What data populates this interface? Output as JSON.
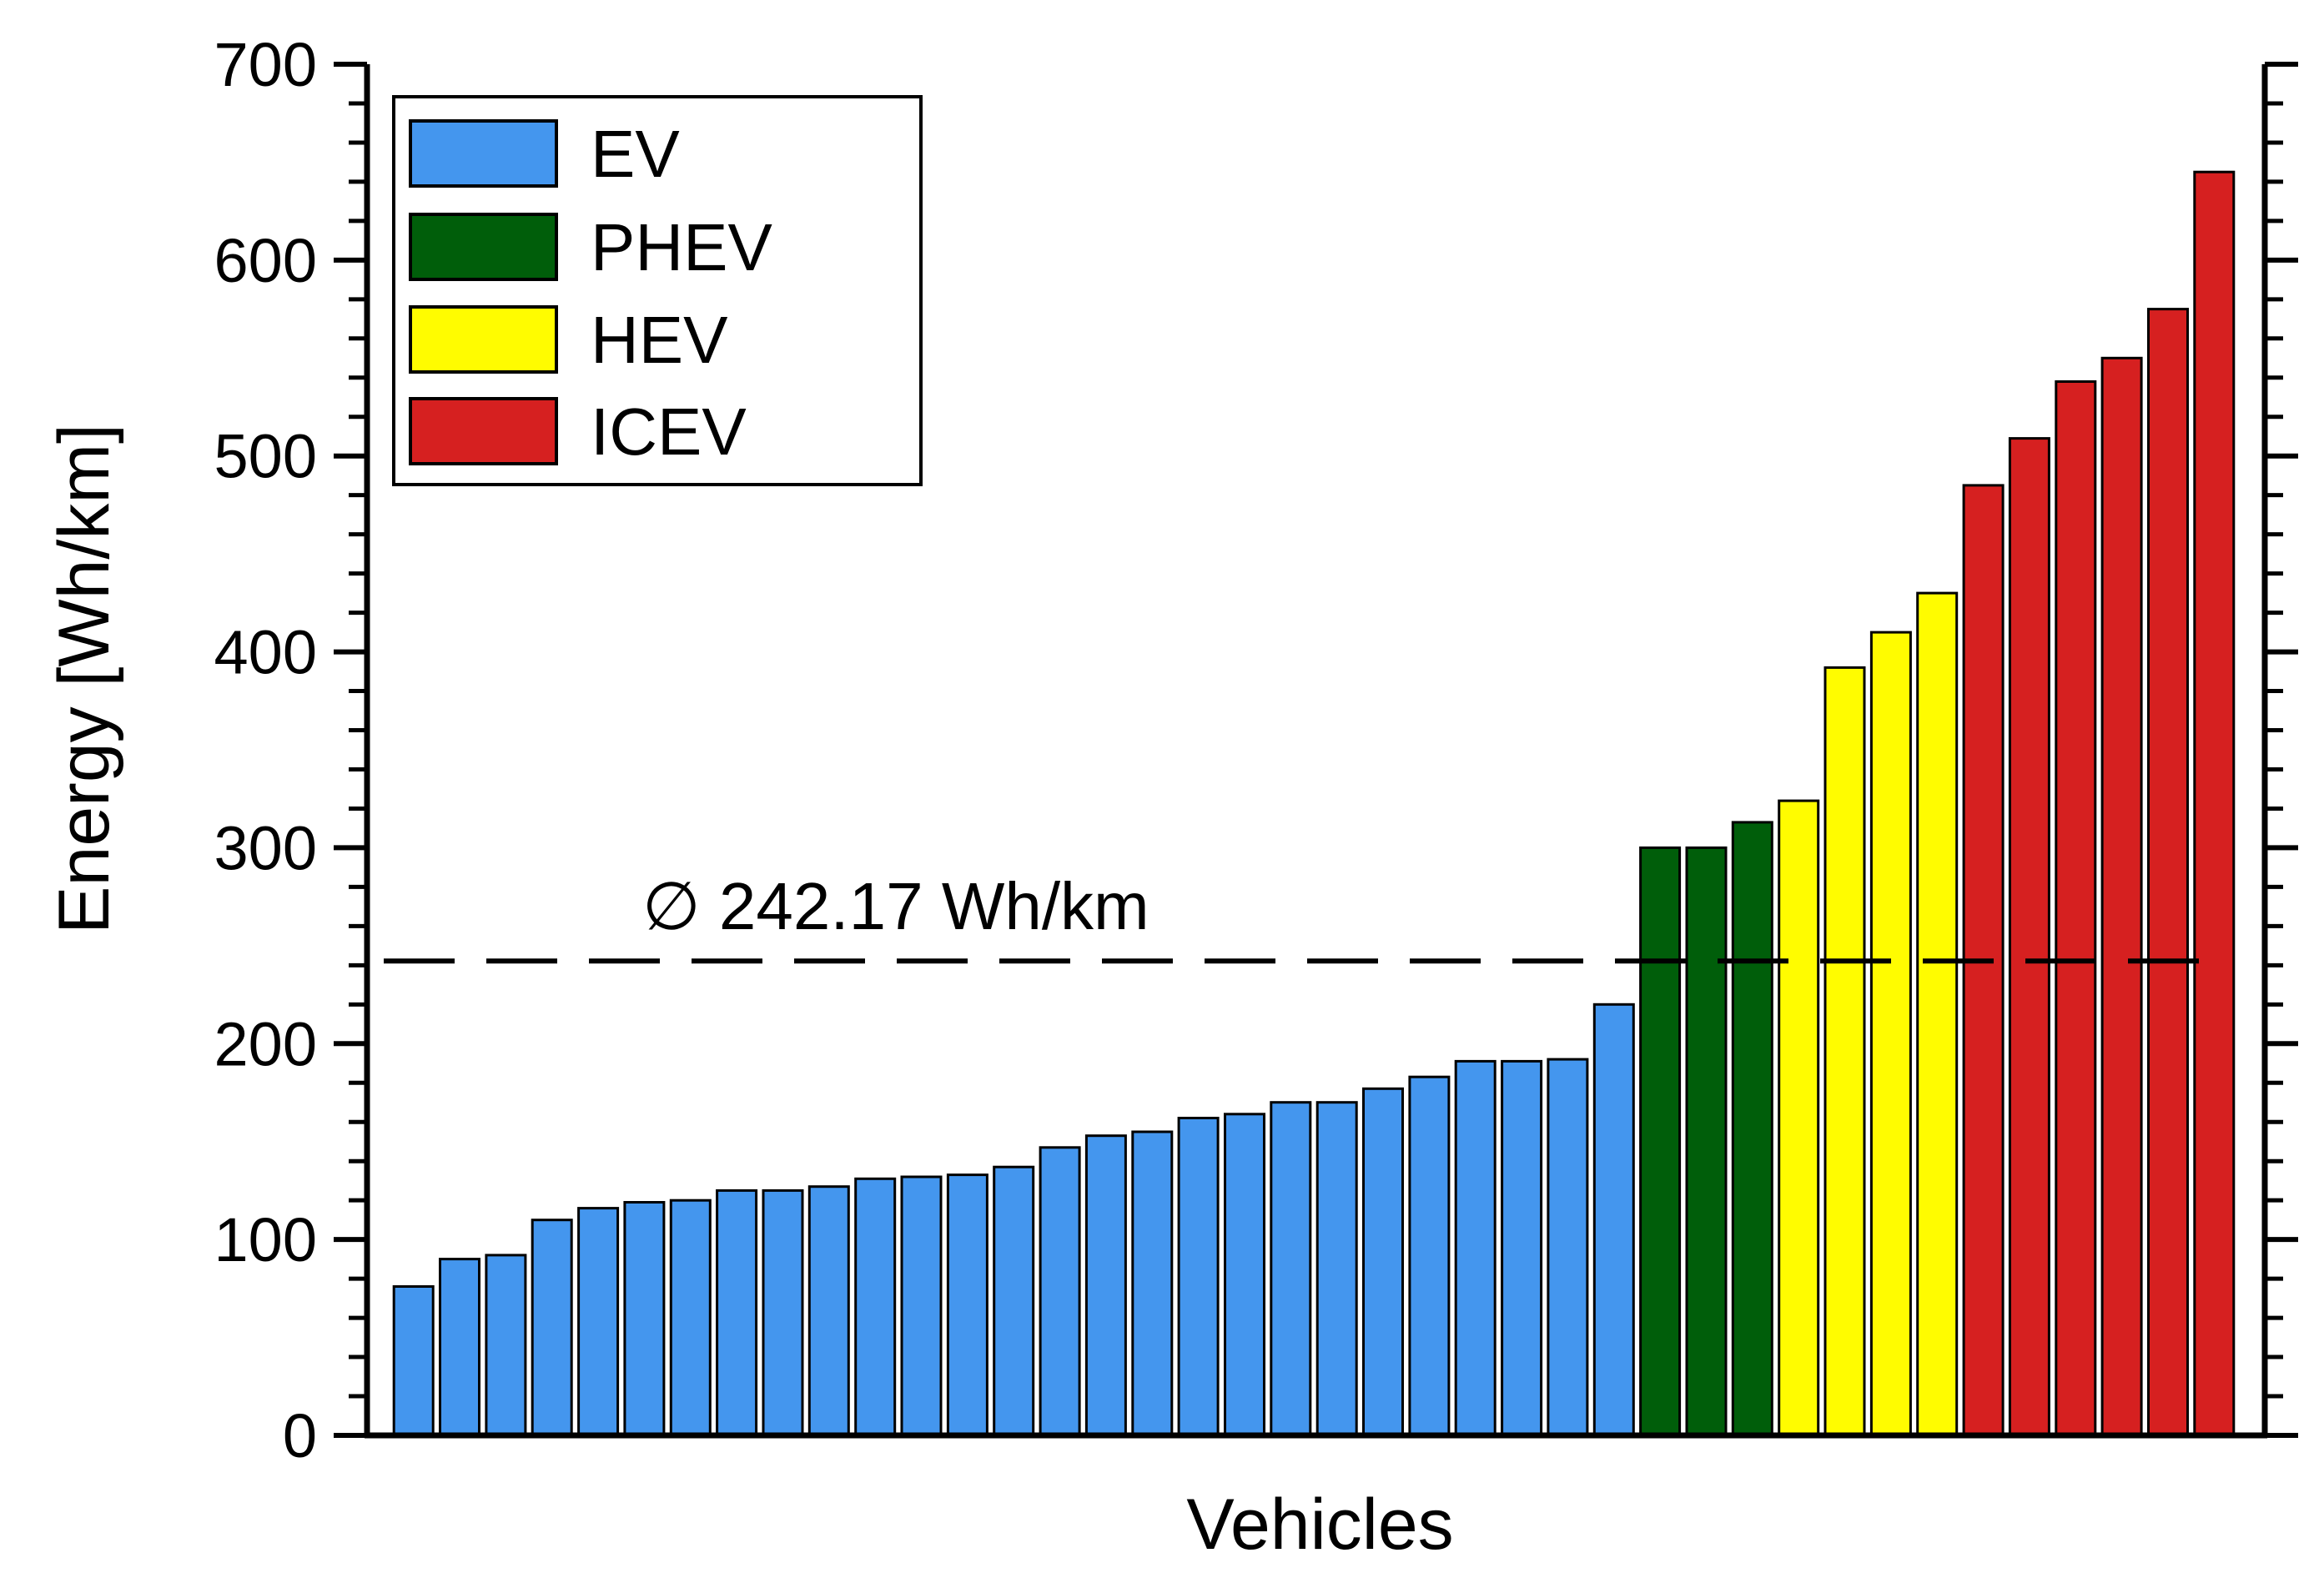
{
  "chart_data": {
    "type": "bar",
    "title": "",
    "xlabel": "Vehicles",
    "ylabel": "Energy [Wh/km]",
    "ylim": [
      0,
      700
    ],
    "yticks": [
      0,
      100,
      200,
      300,
      400,
      500,
      600,
      700
    ],
    "ytick_labels": [
      "0",
      "100",
      "200",
      "300",
      "400",
      "500",
      "600",
      "700"
    ],
    "legend_position": "top-left",
    "grid": false,
    "series": [
      {
        "name": "EV",
        "color": "#4496ee",
        "values": [
          76,
          90,
          92,
          110,
          116,
          119,
          120,
          125,
          125,
          127,
          131,
          132,
          133,
          137,
          147,
          153,
          155,
          162,
          164,
          170,
          170,
          177,
          183,
          191,
          191,
          192,
          220
        ]
      },
      {
        "name": "PHEV",
        "color": "#005e0a",
        "values": [
          300,
          300,
          313
        ]
      },
      {
        "name": "HEV",
        "color": "#fffc00",
        "values": [
          324,
          392,
          410,
          430
        ]
      },
      {
        "name": "ICEV",
        "color": "#d62020",
        "values": [
          485,
          509,
          538,
          550,
          575,
          645
        ]
      }
    ],
    "mean_line": {
      "value": 242.17,
      "label": "∅ 242.17 Wh/km"
    }
  }
}
